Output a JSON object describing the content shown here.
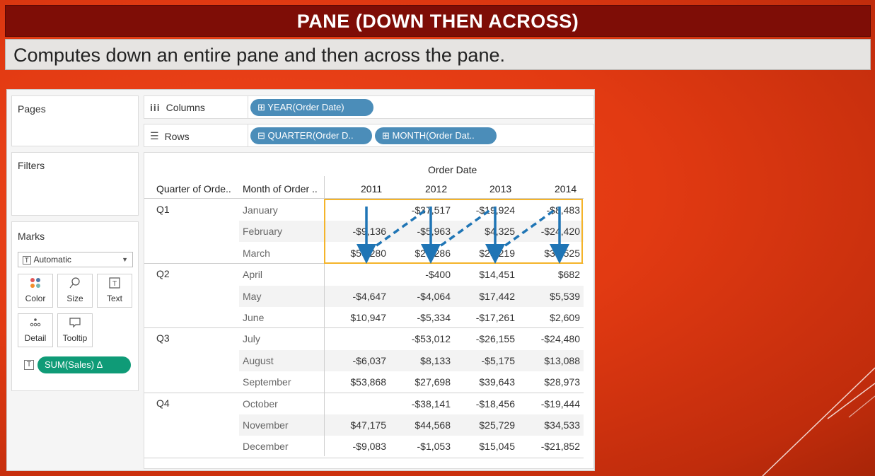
{
  "header": {
    "title": "PANE (DOWN THEN ACROSS)",
    "subtitle": "Computes down an entire pane and then across the pane."
  },
  "shelves": {
    "pages_label": "Pages",
    "filters_label": "Filters",
    "columns_label": "Columns",
    "rows_label": "Rows",
    "columns_pill": "⊞ YEAR(Order Date)",
    "rows_pill_1": "⊟ QUARTER(Order D..",
    "rows_pill_2": "⊞ MONTH(Order Dat.."
  },
  "marks": {
    "title": "Marks",
    "type": "Automatic",
    "color": "Color",
    "size": "Size",
    "text": "Text",
    "detail": "Detail",
    "tooltip": "Tooltip",
    "measure_pill": "SUM(Sales)  Δ"
  },
  "table": {
    "top_header": "Order Date",
    "col_quarter": "Quarter of Orde..",
    "col_month": "Month of Order ..",
    "years": [
      "2011",
      "2012",
      "2013",
      "2014"
    ],
    "quarters": [
      "Q1",
      "Q2",
      "Q3",
      "Q4"
    ],
    "months": [
      "January",
      "February",
      "March",
      "April",
      "May",
      "June",
      "July",
      "August",
      "September",
      "October",
      "November",
      "December"
    ],
    "values": [
      [
        "",
        "-$37,517",
        "-$19,924",
        "-$8,483"
      ],
      [
        "-$9,136",
        "-$5,963",
        "$4,325",
        "-$24,420"
      ],
      [
        "$50,280",
        "$26,286",
        "$28,219",
        "$33,525"
      ],
      [
        "",
        "-$400",
        "$14,451",
        "$682"
      ],
      [
        "-$4,647",
        "-$4,064",
        "$17,442",
        "$5,539"
      ],
      [
        "$10,947",
        "-$5,334",
        "-$17,261",
        "$2,609"
      ],
      [
        "",
        "-$53,012",
        "-$26,155",
        "-$24,480"
      ],
      [
        "-$6,037",
        "$8,133",
        "-$5,175",
        "$13,088"
      ],
      [
        "$53,868",
        "$27,698",
        "$39,643",
        "$28,973"
      ],
      [
        "",
        "-$38,141",
        "-$18,456",
        "-$19,444"
      ],
      [
        "$47,175",
        "$44,568",
        "$25,729",
        "$34,533"
      ],
      [
        "-$9,083",
        "-$1,053",
        "$15,045",
        "-$21,852"
      ]
    ]
  },
  "colors": {
    "title_bg": "#7e0d06",
    "pill_blue": "#4b8db9",
    "pill_green": "#0f9b77",
    "highlight": "#f4b42a",
    "arrow": "#1f75b5"
  }
}
